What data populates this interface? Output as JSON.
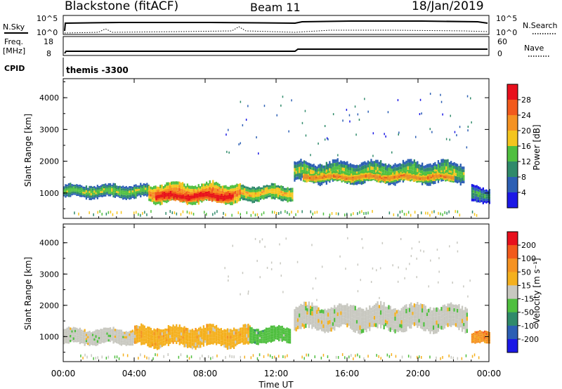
{
  "header": {
    "station": "Blackstone (fitACF)",
    "beam": "Beam 11",
    "date": "18/Jan/2019"
  },
  "top_panels": {
    "nsky_label": "N.Sky",
    "nsearch_label": "N.Search",
    "left_top_tick": "10^5",
    "left_bottom_tick": "10^0",
    "right_top_tick": "10^5",
    "right_bottom_tick": "10^0",
    "freq_label_1": "Freq.",
    "freq_label_2": "[MHz]",
    "freq_ticks": [
      "18",
      "8"
    ],
    "nave_label": "Nave",
    "nave_ticks": [
      "60",
      "0"
    ],
    "cpid_label": "CPID",
    "cpid_value": "themis -3300"
  },
  "chart_data": [
    {
      "type": "heatmap",
      "name": "power",
      "ylabel": "Slant Range [km]",
      "yticks": [
        "1000",
        "2000",
        "3000",
        "4000"
      ],
      "ylim": [
        200,
        4600
      ],
      "xlim": [
        0,
        24
      ],
      "colorbar": {
        "label": "Power [dB]",
        "ticks": [
          "4",
          "8",
          "12",
          "16",
          "20",
          "24",
          "28"
        ],
        "colors": [
          "#1b18e6",
          "#2c5fb4",
          "#2f8a6a",
          "#4fbf3f",
          "#f4c51e",
          "#f59222",
          "#f25a1c",
          "#e8101d"
        ]
      },
      "regions": [
        {
          "t0": 0.0,
          "t1": 4.8,
          "r_center": 1050,
          "r_half": 210,
          "level": 3
        },
        {
          "t0": 4.8,
          "t1": 10.0,
          "r_center": 1000,
          "r_half": 310,
          "level": 5
        },
        {
          "t0": 5.2,
          "t1": 9.6,
          "r_center": 900,
          "r_half": 180,
          "level": 7
        },
        {
          "t0": 10.0,
          "t1": 12.9,
          "r_center": 1000,
          "r_half": 240,
          "level": 4
        },
        {
          "t0": 13.0,
          "t1": 22.6,
          "r_center": 1650,
          "r_half": 330,
          "level": 3
        },
        {
          "t0": 13.5,
          "t1": 22.0,
          "r_center": 1500,
          "r_half": 150,
          "level": 5
        },
        {
          "t0": 23.0,
          "t1": 24.0,
          "r_center": 950,
          "r_half": 250,
          "level": 2
        }
      ]
    },
    {
      "type": "heatmap",
      "name": "velocity",
      "ylabel": "Slant Range [km]",
      "yticks": [
        "1000",
        "2000",
        "3000",
        "4000"
      ],
      "ylim": [
        200,
        4600
      ],
      "xlim": [
        0,
        24
      ],
      "colorbar": {
        "label": "Velocity [m s⁻¹]",
        "ticks": [
          "200",
          "100",
          "50",
          "15",
          "-15",
          "-50",
          "-100",
          "-200"
        ],
        "colors": [
          "#1b18e6",
          "#2c5fb4",
          "#2f8a6a",
          "#4fbf3f",
          "#c8c8c0",
          "#f4b01e",
          "#f59222",
          "#f25a1c",
          "#e8101d"
        ]
      },
      "regions": [
        {
          "t0": 0.0,
          "t1": 4.0,
          "r_center": 1000,
          "r_half": 250,
          "level": 4
        },
        {
          "t0": 4.0,
          "t1": 10.5,
          "r_center": 1000,
          "r_half": 320,
          "level": 5
        },
        {
          "t0": 10.5,
          "t1": 12.8,
          "r_center": 1050,
          "r_half": 250,
          "level": 3
        },
        {
          "t0": 13.0,
          "t1": 22.8,
          "r_center": 1600,
          "r_half": 400,
          "level": 4
        },
        {
          "t0": 23.0,
          "t1": 24.0,
          "r_center": 950,
          "r_half": 200,
          "level": 6
        }
      ]
    }
  ],
  "x_axis": {
    "ticks": [
      "00:00",
      "04:00",
      "08:00",
      "12:00",
      "16:00",
      "20:00",
      "00:00"
    ],
    "label": "Time UT"
  }
}
